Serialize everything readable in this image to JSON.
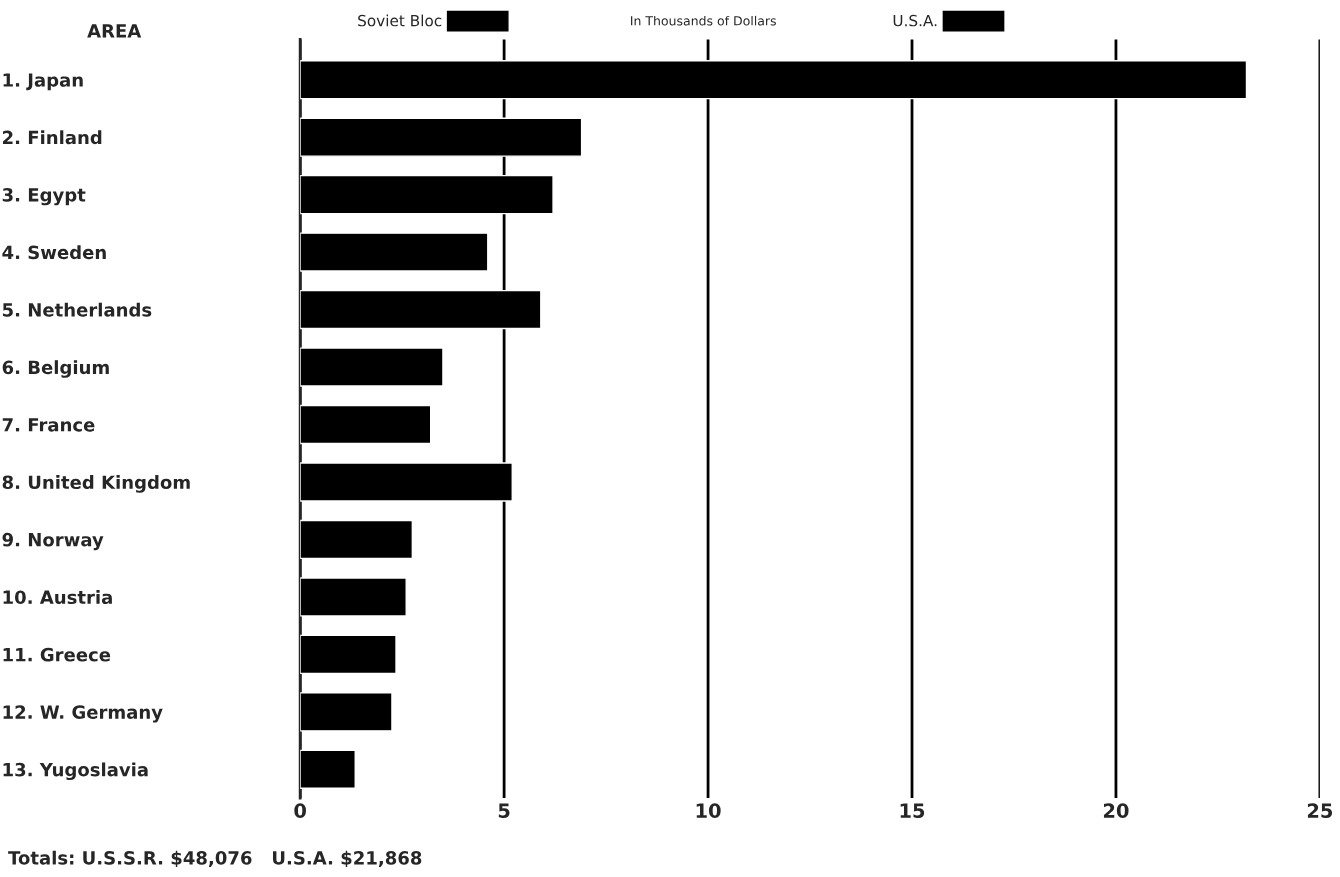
{
  "chart_data": {
    "type": "bar",
    "orientation": "horizontal",
    "ylabel": "AREA",
    "subtitle": "In Thousands of Dollars",
    "categories": [
      "1. Japan",
      "2. Finland",
      "3. Egypt",
      "4. Sweden",
      "5. Netherlands",
      "6. Belgium",
      "7. France",
      "8. United Kingdom",
      "9. Norway",
      "10. Austria",
      "11. Greece",
      "12. W. Germany",
      "13. Yugoslavia"
    ],
    "series": [
      {
        "name": "Soviet Bloc",
        "color": "#000000",
        "values": [
          23.2,
          6.9,
          6.2,
          4.6,
          5.9,
          3.5,
          3.2,
          5.2,
          2.75,
          2.6,
          2.35,
          2.25,
          1.35
        ]
      },
      {
        "name": "U.S.A.",
        "color": "#000000",
        "values": [
          null,
          null,
          null,
          null,
          null,
          null,
          null,
          null,
          null,
          null,
          null,
          null,
          null
        ]
      }
    ],
    "xlim": [
      0,
      25
    ],
    "xticks": [
      0,
      5,
      10,
      15,
      20,
      25
    ],
    "grid": "x",
    "legend": "top",
    "annotations": [
      "Totals: U.S.S.R. $48,076   U.S.A. $21,868"
    ]
  }
}
